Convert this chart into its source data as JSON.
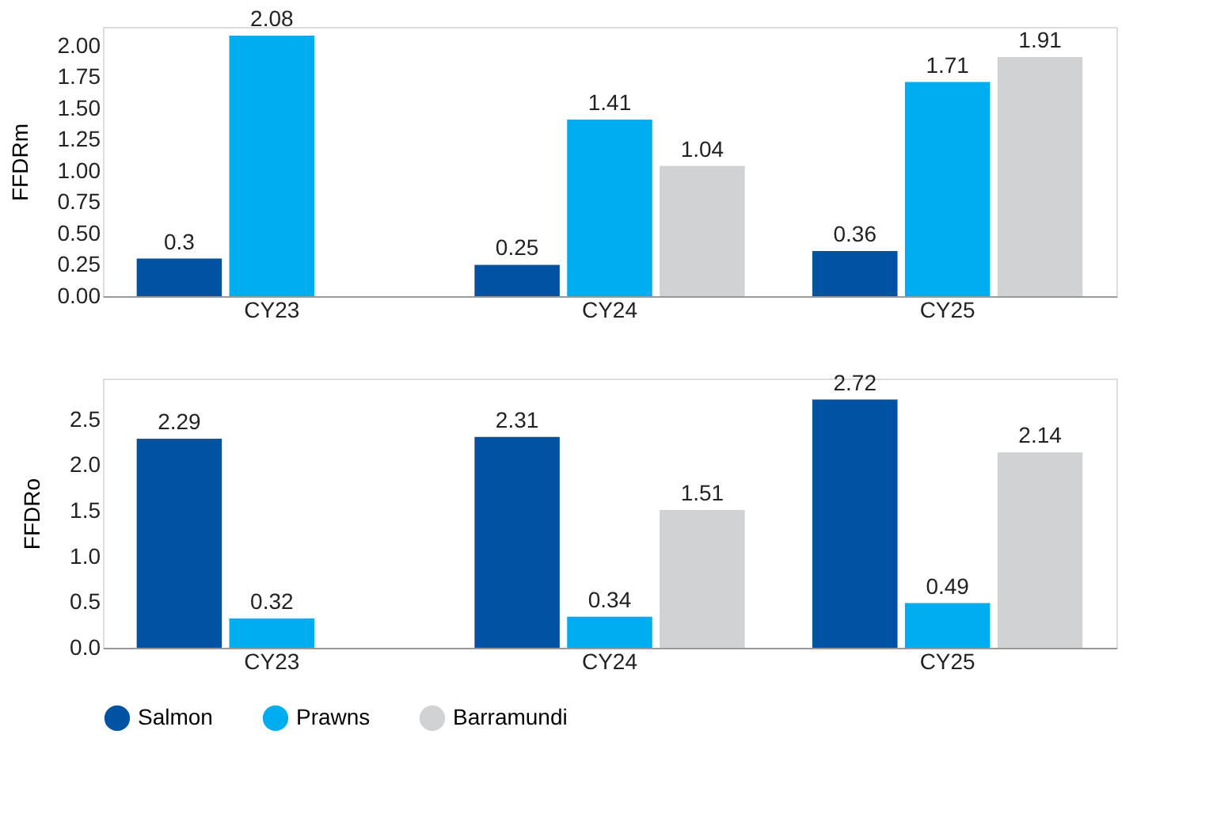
{
  "chart_data": [
    {
      "type": "bar",
      "ylabel": "FFDRm",
      "categories": [
        "CY23",
        "CY24",
        "CY25"
      ],
      "series": [
        {
          "name": "Salmon",
          "color": "#0052a3",
          "values": [
            0.3,
            0.25,
            0.36
          ]
        },
        {
          "name": "Prawns",
          "color": "#00aeef",
          "values": [
            2.08,
            1.41,
            1.71
          ]
        },
        {
          "name": "Barramundi",
          "color": "#d1d2d4",
          "values": [
            null,
            1.04,
            1.91
          ]
        }
      ],
      "ylim": [
        0,
        2.15
      ],
      "yticks": [
        {
          "value": 0,
          "label": "0.00"
        },
        {
          "value": 0.25,
          "label": "0.25"
        },
        {
          "value": 0.5,
          "label": "0.50"
        },
        {
          "value": 0.75,
          "label": "0.75"
        },
        {
          "value": 1,
          "label": "1.00"
        },
        {
          "value": 1.25,
          "label": "1.25"
        },
        {
          "value": 1.5,
          "label": "1.50"
        },
        {
          "value": 1.75,
          "label": "1.75"
        },
        {
          "value": 2,
          "label": "2.00"
        }
      ],
      "data_labels": true,
      "grid": false,
      "legend": "bottom"
    },
    {
      "type": "bar",
      "ylabel": "FFDRo",
      "categories": [
        "CY23",
        "CY24",
        "CY25"
      ],
      "series": [
        {
          "color": "#0052a3",
          "values": [
            2.29,
            2.31,
            2.72
          ]
        },
        {
          "color": "#00aeef",
          "values": [
            0.32,
            0.34,
            0.49
          ]
        },
        {
          "color": "#d1d2d4",
          "values": [
            null,
            1.51,
            2.14
          ]
        }
      ],
      "ylim": [
        0,
        2.95
      ],
      "yticks": [
        {
          "value": 0,
          "label": "0.0"
        },
        {
          "value": 0.5,
          "label": "0.5"
        },
        {
          "value": 1,
          "label": "1.0"
        },
        {
          "value": 1.5,
          "label": "1.5"
        },
        {
          "value": 2,
          "label": "2.0"
        },
        {
          "value": 2.5,
          "label": "2.5"
        }
      ],
      "data_labels": true,
      "grid": false
    }
  ]
}
